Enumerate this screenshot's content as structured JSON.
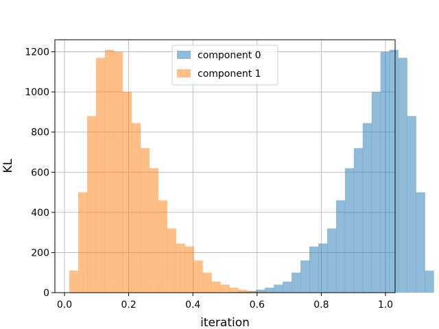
{
  "chart_data": {
    "type": "bar",
    "title": "",
    "xlabel": "iteration",
    "ylabel": "KL",
    "xlim": [
      -0.03,
      1.03
    ],
    "ylim": [
      0,
      1260
    ],
    "xticks": [
      0.0,
      0.2,
      0.4,
      0.6,
      0.8,
      1.0
    ],
    "xtick_labels": [
      "0.0",
      "0.2",
      "0.4",
      "0.6",
      "0.8",
      "1.0"
    ],
    "yticks": [
      0,
      200,
      400,
      600,
      800,
      1000,
      1200
    ],
    "ytick_labels": [
      "0",
      "200",
      "400",
      "600",
      "800",
      "1000",
      "1200"
    ],
    "grid": true,
    "legend_position": "top-center",
    "series": [
      {
        "name": "component 0",
        "color": "#1f77b4",
        "alpha": 0.5,
        "bin_start": 0.015,
        "bin_width": 0.0277,
        "values": [
          0,
          0,
          0,
          0,
          0,
          0,
          0,
          0,
          0,
          0,
          0,
          0,
          0,
          0,
          0,
          0,
          0,
          0,
          3,
          5,
          8,
          15,
          25,
          40,
          55,
          100,
          160,
          230,
          245,
          320,
          460,
          620,
          720,
          845,
          1000,
          1200,
          1210,
          1170,
          880,
          500,
          110
        ]
      },
      {
        "name": "component 1",
        "color": "#ff7f0e",
        "alpha": 0.5,
        "bin_start": 0.015,
        "bin_width": 0.0277,
        "values": [
          110,
          500,
          880,
          1170,
          1210,
          1200,
          1000,
          845,
          720,
          620,
          460,
          320,
          245,
          230,
          160,
          100,
          55,
          40,
          25,
          15,
          8,
          5,
          3,
          0,
          0,
          0,
          0,
          0,
          0,
          0,
          0,
          0,
          0,
          0,
          0,
          0,
          0,
          0,
          0,
          0,
          0
        ]
      }
    ]
  }
}
